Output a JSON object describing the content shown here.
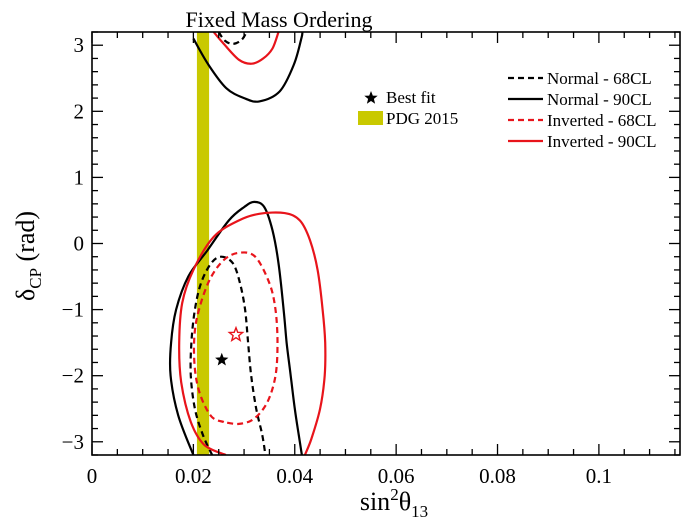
{
  "chart_data": {
    "type": "line",
    "title": "Fixed Mass Ordering",
    "xlabel": "sin²θ₁₃",
    "ylabel": "δCP (rad)",
    "xlim": [
      0,
      0.116
    ],
    "ylim": [
      -3.2,
      3.2
    ],
    "x_ticks": [
      "0",
      "0.02",
      "0.04",
      "0.06",
      "0.08",
      "0.1"
    ],
    "x_tick_values": [
      0,
      0.02,
      0.04,
      0.06,
      0.08,
      0.1
    ],
    "y_ticks": [
      "-3",
      "-2",
      "-1",
      "0",
      "1",
      "2",
      "3"
    ],
    "y_tick_values": [
      -3,
      -2,
      -1,
      0,
      1,
      2,
      3
    ],
    "grid": false,
    "legend_position": "top-right",
    "colors": {
      "normal": "#000000",
      "inverted": "#e8141b",
      "pdg": "#c9c900"
    },
    "legend": [
      {
        "label": "Normal - 68CL",
        "style": "dashed",
        "color": "#000000"
      },
      {
        "label": "Normal - 90CL",
        "style": "solid",
        "color": "#000000"
      },
      {
        "label": "Inverted - 68CL",
        "style": "dashed",
        "color": "#e8141b"
      },
      {
        "label": "Inverted - 90CL",
        "style": "solid",
        "color": "#e8141b"
      }
    ],
    "legend2": [
      {
        "label": "Best fit",
        "marker": "star",
        "color": "#000000"
      },
      {
        "label": "PDG 2015",
        "marker": "band",
        "color": "#c9c900"
      }
    ],
    "pdg_band": {
      "xmin": 0.0207,
      "xmax": 0.0231
    },
    "best_fits": [
      {
        "name": "Normal",
        "x": 0.0256,
        "y": -1.76,
        "filled": true,
        "color": "#000000"
      },
      {
        "name": "Inverted",
        "x": 0.0284,
        "y": -1.38,
        "filled": false,
        "color": "#e8141b"
      }
    ],
    "series": [
      {
        "name": "Normal - 68CL",
        "color": "#000000",
        "dash": "dashed",
        "segments": [
          [
            [
              0.0237,
              -3.2
            ],
            [
              0.0219,
              -2.9
            ],
            [
              0.0203,
              -2.5
            ],
            [
              0.0195,
              -2.0
            ],
            [
              0.0196,
              -1.5
            ],
            [
              0.0203,
              -1.0
            ],
            [
              0.0215,
              -0.6
            ],
            [
              0.0235,
              -0.3
            ],
            [
              0.0255,
              -0.2
            ],
            [
              0.0278,
              -0.3
            ],
            [
              0.0292,
              -0.6
            ],
            [
              0.0302,
              -1.0
            ],
            [
              0.0308,
              -1.5
            ],
            [
              0.0314,
              -2.0
            ],
            [
              0.0324,
              -2.5
            ],
            [
              0.0336,
              -2.9
            ],
            [
              0.0342,
              -3.2
            ]
          ],
          [
            [
              0.025,
              3.2
            ],
            [
              0.0262,
              3.07
            ],
            [
              0.0278,
              3.02
            ],
            [
              0.0295,
              3.08
            ],
            [
              0.0305,
              3.2
            ]
          ]
        ]
      },
      {
        "name": "Normal - 90CL",
        "color": "#000000",
        "dash": "solid",
        "segments": [
          [
            [
              0.02,
              -3.2
            ],
            [
              0.017,
              -2.6
            ],
            [
              0.0155,
              -2.0
            ],
            [
              0.0156,
              -1.5
            ],
            [
              0.0166,
              -1.0
            ],
            [
              0.019,
              -0.5
            ],
            [
              0.0228,
              -0.1
            ],
            [
              0.027,
              0.35
            ],
            [
              0.03,
              0.55
            ],
            [
              0.032,
              0.63
            ],
            [
              0.034,
              0.55
            ],
            [
              0.0356,
              0.2
            ],
            [
              0.0368,
              -0.3
            ],
            [
              0.0378,
              -1.0
            ],
            [
              0.0384,
              -1.5
            ],
            [
              0.0392,
              -2.0
            ],
            [
              0.04,
              -2.5
            ],
            [
              0.0408,
              -2.9
            ],
            [
              0.0414,
              -3.2
            ]
          ],
          [
            [
              0.02,
              3.1
            ],
            [
              0.023,
              2.7
            ],
            [
              0.0265,
              2.35
            ],
            [
              0.03,
              2.2
            ],
            [
              0.033,
              2.15
            ],
            [
              0.037,
              2.3
            ],
            [
              0.0398,
              2.7
            ],
            [
              0.0413,
              3.1
            ],
            [
              0.0415,
              3.2
            ]
          ]
        ]
      },
      {
        "name": "Inverted - 68CL",
        "color": "#e8141b",
        "dash": "dashed",
        "segments": [
          [
            [
              0.026,
              -2.7
            ],
            [
              0.0236,
              -2.62
            ],
            [
              0.0214,
              -2.3
            ],
            [
              0.0203,
              -1.9
            ],
            [
              0.0202,
              -1.4
            ],
            [
              0.0211,
              -1.0
            ],
            [
              0.0232,
              -0.55
            ],
            [
              0.026,
              -0.25
            ],
            [
              0.029,
              -0.14
            ],
            [
              0.0322,
              -0.2
            ],
            [
              0.035,
              -0.6
            ],
            [
              0.0362,
              -1.0
            ],
            [
              0.0366,
              -1.5
            ],
            [
              0.0362,
              -2.0
            ],
            [
              0.0346,
              -2.4
            ],
            [
              0.032,
              -2.65
            ],
            [
              0.029,
              -2.73
            ],
            [
              0.026,
              -2.7
            ]
          ]
        ]
      },
      {
        "name": "Inverted - 90CL",
        "color": "#e8141b",
        "dash": "solid",
        "segments": [
          [
            [
              0.0264,
              -3.2
            ],
            [
              0.0222,
              -3.05
            ],
            [
              0.0195,
              -2.7
            ],
            [
              0.0176,
              -2.1
            ],
            [
              0.0172,
              -1.5
            ],
            [
              0.0178,
              -0.9
            ],
            [
              0.02,
              -0.4
            ],
            [
              0.024,
              0.1
            ],
            [
              0.029,
              0.35
            ],
            [
              0.033,
              0.45
            ],
            [
              0.038,
              0.46
            ],
            [
              0.041,
              0.35
            ],
            [
              0.043,
              0.05
            ],
            [
              0.0445,
              -0.4
            ],
            [
              0.0455,
              -1.0
            ],
            [
              0.046,
              -1.5
            ],
            [
              0.0459,
              -2.0
            ],
            [
              0.045,
              -2.5
            ],
            [
              0.0433,
              -2.95
            ],
            [
              0.042,
              -3.2
            ]
          ],
          [
            [
              0.024,
              3.2
            ],
            [
              0.026,
              3.02
            ],
            [
              0.029,
              2.78
            ],
            [
              0.0315,
              2.72
            ],
            [
              0.0338,
              2.8
            ],
            [
              0.0356,
              2.95
            ],
            [
              0.0368,
              3.2
            ]
          ]
        ]
      }
    ]
  }
}
